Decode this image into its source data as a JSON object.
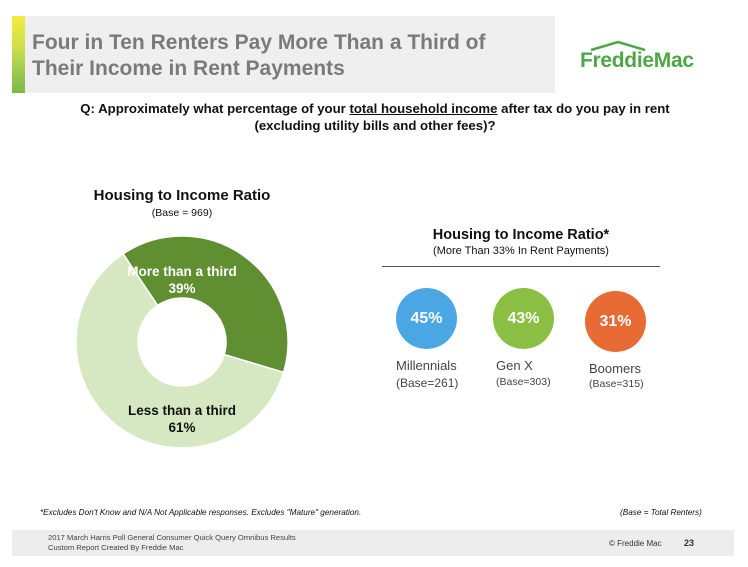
{
  "header": {
    "title_line1": "Four in Ten Renters Pay More Than a Third of",
    "title_line2": "Their Income in Rent Payments",
    "logo_text": "FreddieMac"
  },
  "question": {
    "prefix": "Q: Approximately what percentage of your ",
    "underlined": "total household income",
    "suffix": " after tax do you pay in rent (excluding utility bills and other fees)?"
  },
  "chart_data": [
    {
      "type": "pie",
      "title": "Housing to Income Ratio",
      "subtitle": "(Base = 969)",
      "donut": true,
      "slices": [
        {
          "label": "More than a third",
          "value": 39,
          "value_label": "39%",
          "color": "#5f8f31",
          "text_color": "#ffffff"
        },
        {
          "label": "Less than a third",
          "value": 61,
          "value_label": "61%",
          "color": "#d6e8c2",
          "text_color": "#111111"
        }
      ]
    },
    {
      "type": "bar",
      "title": "Housing to Income Ratio*",
      "subtitle": "(More Than 33% In Rent Payments)",
      "categories": [
        "Millennials",
        "Gen X",
        "Boomers"
      ],
      "values": [
        45,
        43,
        31
      ],
      "value_labels": [
        "45%",
        "43%",
        "31%"
      ],
      "bases": [
        "(Base=261)",
        "(Base=303)",
        "(Base=315)"
      ],
      "colors": [
        "#4aa7e3",
        "#8abf44",
        "#e86b35"
      ]
    }
  ],
  "footnotes": {
    "left": "*Excludes Don't Know and N/A Not Applicable responses. Excludes \"Mature\" generation.",
    "right": "(Base = Total Renters)"
  },
  "footer": {
    "source_line1": "2017 March Harris Poll General Consumer Quick Query Omnibus Results",
    "source_line2": "Custom Report Created By Freddie Mac",
    "copyright": "© Freddie Mac",
    "page": "23"
  },
  "colors": {
    "title_gray": "#7a7a7a",
    "brand_green": "#4ea647"
  }
}
